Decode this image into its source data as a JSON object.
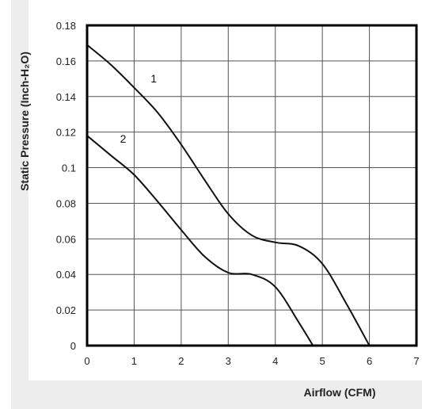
{
  "chart_data": {
    "type": "line",
    "xlabel": "Airflow (CFM)",
    "ylabel": "Static Pressure (Inch-H₂O)",
    "xlim": [
      0,
      7
    ],
    "ylim": [
      0,
      0.18
    ],
    "x_ticks": [
      "0",
      "1",
      "2",
      "3",
      "4",
      "5",
      "6",
      "7"
    ],
    "y_ticks": [
      "0",
      "0.02",
      "0.04",
      "0.06",
      "0.08",
      "0.1",
      "0.12",
      "0.14",
      "0.16",
      "0.18"
    ],
    "grid": true,
    "series": [
      {
        "name": "1",
        "color": "#111111",
        "points": [
          [
            0,
            0.169
          ],
          [
            0.5,
            0.158
          ],
          [
            1,
            0.145
          ],
          [
            1.5,
            0.131
          ],
          [
            2,
            0.113
          ],
          [
            2.5,
            0.093
          ],
          [
            3,
            0.074
          ],
          [
            3.5,
            0.062
          ],
          [
            4,
            0.058
          ],
          [
            4.5,
            0.056
          ],
          [
            5,
            0.046
          ],
          [
            5.5,
            0.024
          ],
          [
            6,
            0.0
          ]
        ]
      },
      {
        "name": "2",
        "color": "#111111",
        "points": [
          [
            0,
            0.118
          ],
          [
            0.5,
            0.107
          ],
          [
            1,
            0.096
          ],
          [
            1.5,
            0.081
          ],
          [
            2,
            0.065
          ],
          [
            2.5,
            0.05
          ],
          [
            3,
            0.041
          ],
          [
            3.5,
            0.04
          ],
          [
            4,
            0.033
          ],
          [
            4.5,
            0.013
          ],
          [
            4.8,
            0.0
          ]
        ]
      }
    ],
    "curve_labels": [
      {
        "text": "1",
        "x": 1.35,
        "y": 0.148
      },
      {
        "text": "2",
        "x": 0.7,
        "y": 0.114
      }
    ]
  }
}
